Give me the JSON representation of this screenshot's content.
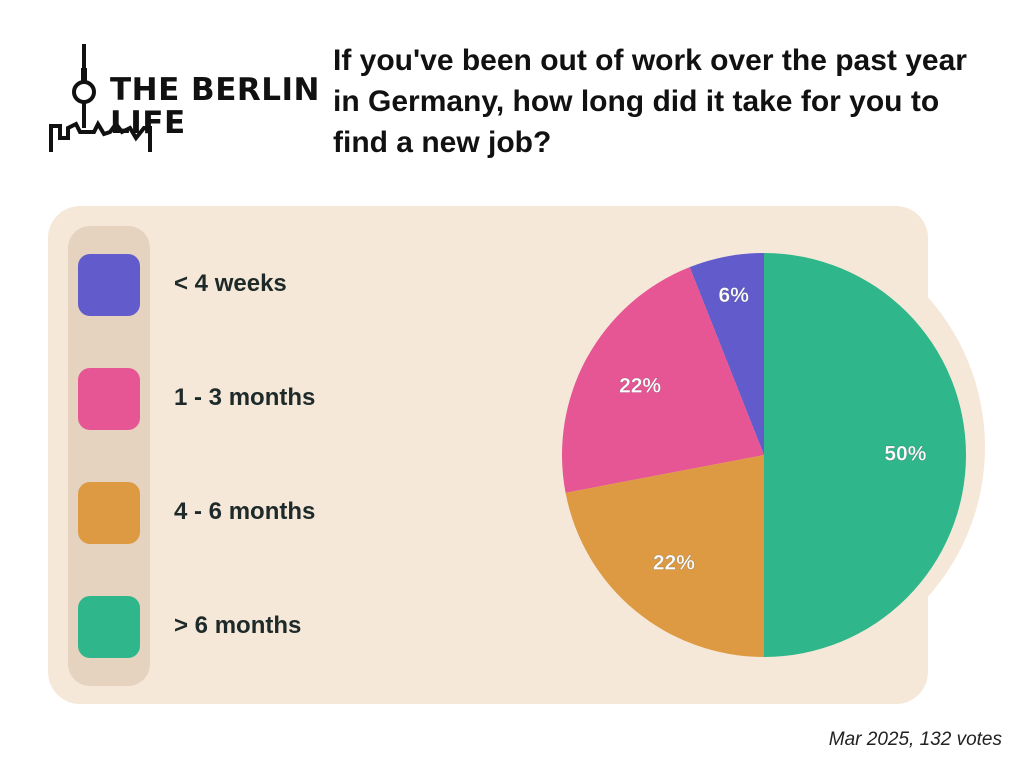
{
  "logo": {
    "line1": "THE BERLIN",
    "line2": "LIFE",
    "alt": "THE BERLIN LIFE"
  },
  "chart_data": {
    "type": "pie",
    "title": "If you've been out of work over the past year in Germany, how long did it take for you to find a new job?",
    "categories": [
      "< 4 weeks",
      "1 - 3 months",
      "4 - 6 months",
      "> 6 months"
    ],
    "values": [
      6,
      22,
      22,
      50
    ],
    "data_labels": [
      "6%",
      "22%",
      "22%",
      "50%"
    ],
    "colors": [
      "#625bcb",
      "#e65594",
      "#dd9a43",
      "#2fb68a"
    ],
    "legend_position": "left",
    "start": "top",
    "direction": "counter-clockwise"
  },
  "footer": "Mar 2025, 132 votes"
}
